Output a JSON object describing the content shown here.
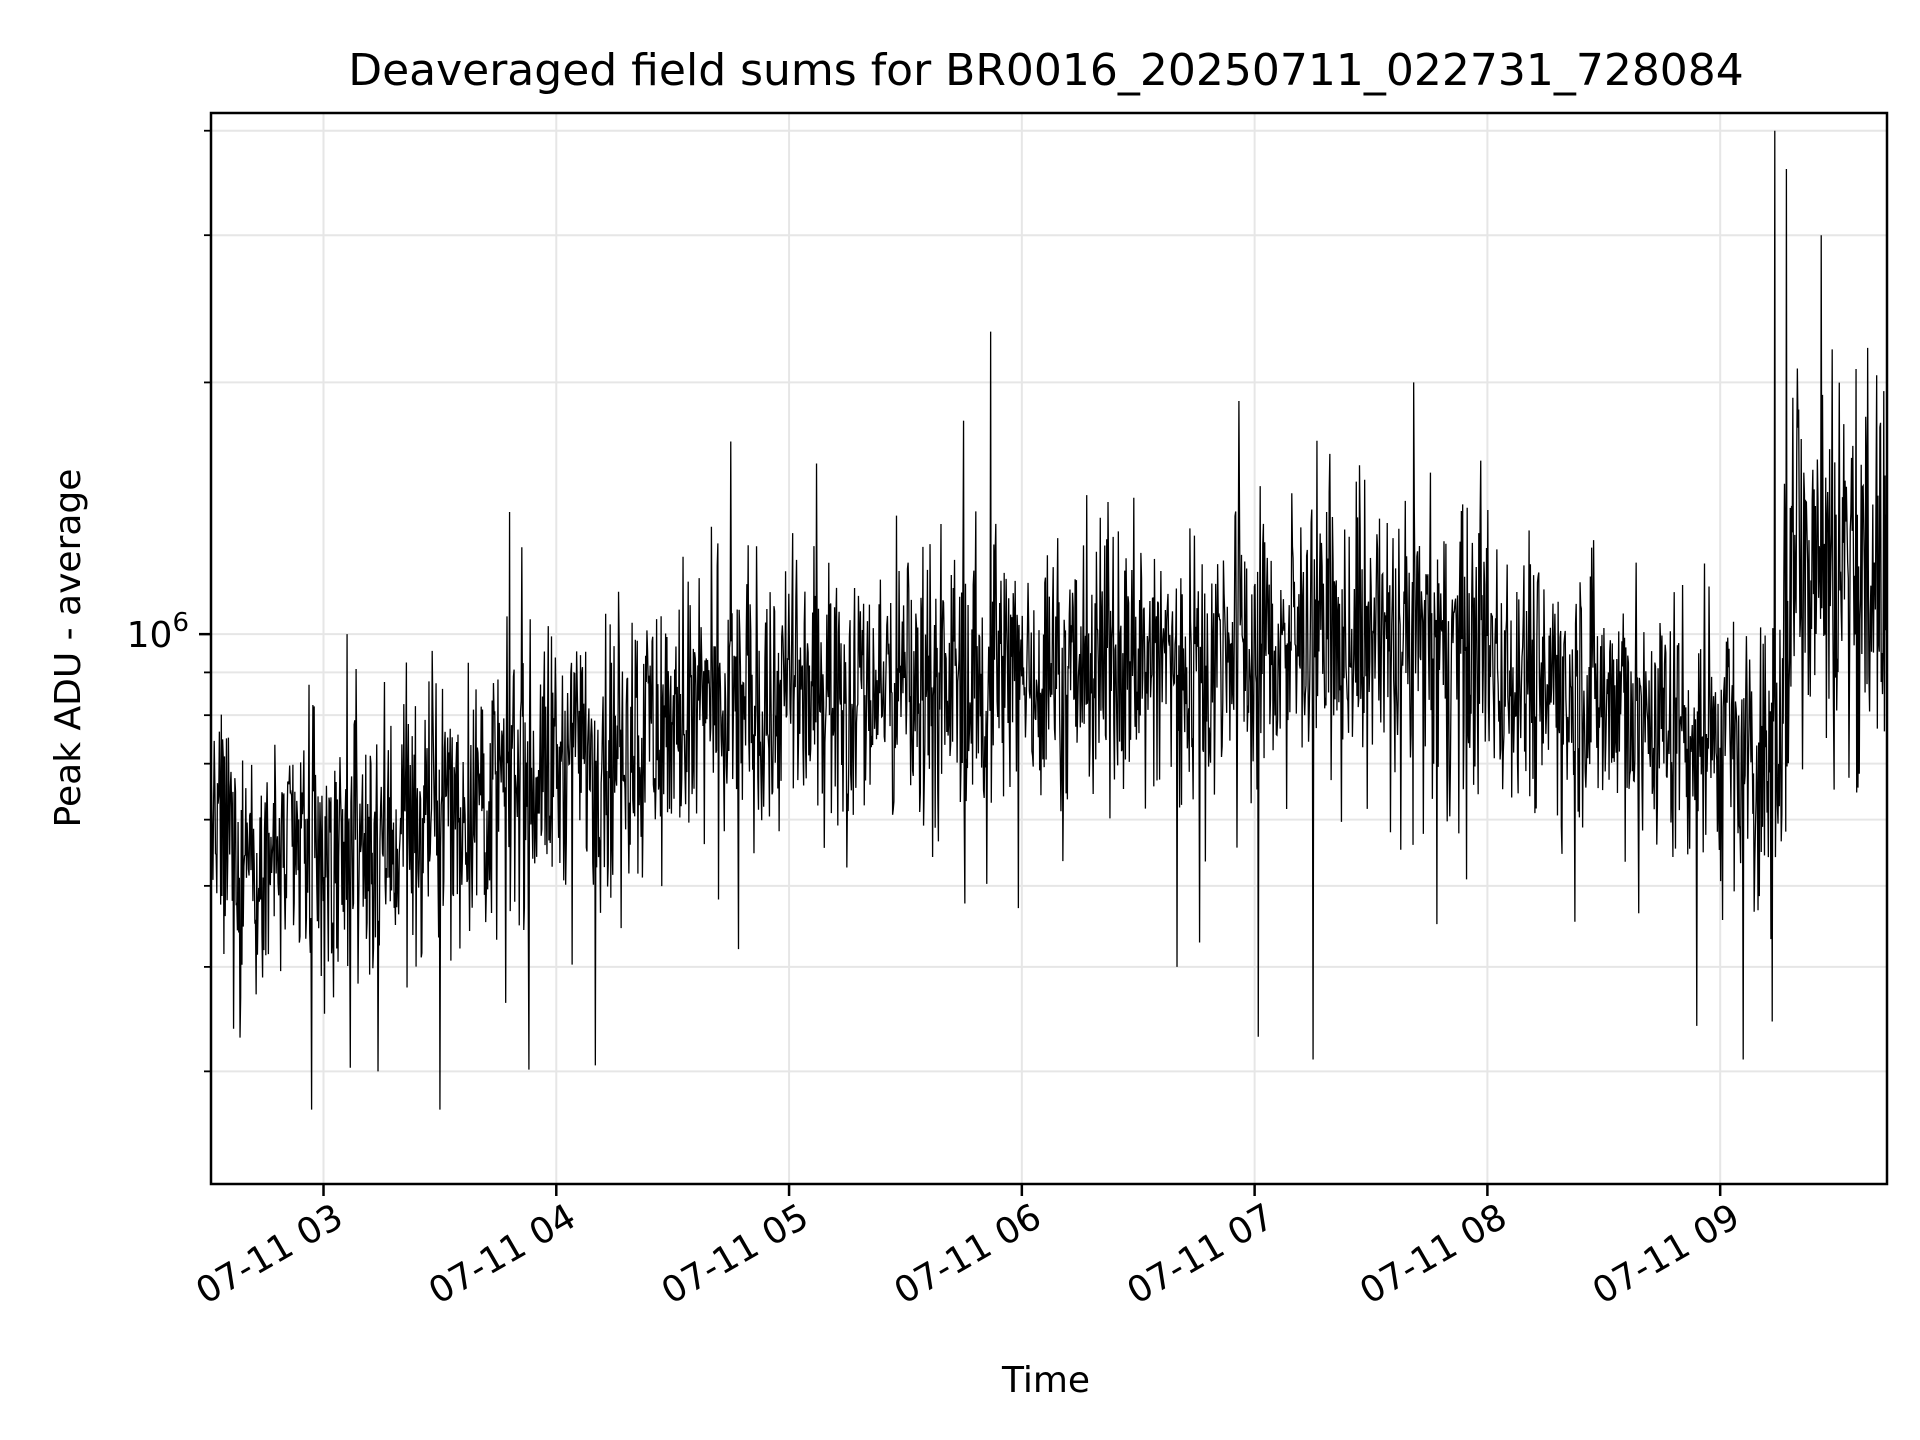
{
  "chart_data": {
    "type": "line",
    "title": "Deaveraged field sums for BR0016_20250711_022731_728084",
    "xlabel": "Time",
    "ylabel": "Peak ADU - average",
    "yscale": "log",
    "xlim": [
      "2025-07-11 02:31",
      "2025-07-11 09:43"
    ],
    "ylim": [
      220000,
      4200000
    ],
    "x_ticks": [
      "07-11 03",
      "07-11 04",
      "07-11 05",
      "07-11 06",
      "07-11 07",
      "07-11 08",
      "07-11 09"
    ],
    "y_tick_label": "10^6",
    "grid": true,
    "legend": "none",
    "line_color": "#000000",
    "trend": {
      "x": [
        "2025-07-11 02:31",
        "2025-07-11 03:00",
        "2025-07-11 03:30",
        "2025-07-11 04:00",
        "2025-07-11 04:30",
        "2025-07-11 05:00",
        "2025-07-11 05:30",
        "2025-07-11 06:00",
        "2025-07-11 06:30",
        "2025-07-11 07:00",
        "2025-07-11 07:30",
        "2025-07-11 08:00",
        "2025-07-11 08:30",
        "2025-07-11 09:00",
        "2025-07-11 09:13",
        "2025-07-11 09:20",
        "2025-07-11 09:43"
      ],
      "y": [
        560000,
        540000,
        610000,
        700000,
        790000,
        850000,
        880000,
        900000,
        930000,
        960000,
        1000000,
        950000,
        850000,
        720000,
        700000,
        1300000,
        1150000
      ]
    },
    "spikes": [
      {
        "x": "2025-07-11 02:57",
        "y": 270000
      },
      {
        "x": "2025-07-11 03:06",
        "y": 1000000
      },
      {
        "x": "2025-07-11 03:14",
        "y": 300000
      },
      {
        "x": "2025-07-11 03:30",
        "y": 270000
      },
      {
        "x": "2025-07-11 03:48",
        "y": 1400000
      },
      {
        "x": "2025-07-11 04:10",
        "y": 305000
      },
      {
        "x": "2025-07-11 04:45",
        "y": 1700000
      },
      {
        "x": "2025-07-11 04:47",
        "y": 420000
      },
      {
        "x": "2025-07-11 05:07",
        "y": 1600000
      },
      {
        "x": "2025-07-11 05:45",
        "y": 1800000
      },
      {
        "x": "2025-07-11 05:52",
        "y": 2300000
      },
      {
        "x": "2025-07-11 06:40",
        "y": 400000
      },
      {
        "x": "2025-07-11 06:56",
        "y": 1900000
      },
      {
        "x": "2025-07-11 07:01",
        "y": 330000
      },
      {
        "x": "2025-07-11 07:15",
        "y": 310000
      },
      {
        "x": "2025-07-11 07:41",
        "y": 2000000
      },
      {
        "x": "2025-07-11 07:47",
        "y": 450000
      },
      {
        "x": "2025-07-11 08:54",
        "y": 340000
      },
      {
        "x": "2025-07-11 09:06",
        "y": 310000
      },
      {
        "x": "2025-07-11 09:14",
        "y": 4000000
      },
      {
        "x": "2025-07-11 09:17",
        "y": 3600000
      },
      {
        "x": "2025-07-11 09:26",
        "y": 3000000
      },
      {
        "x": "2025-07-11 09:38",
        "y": 2200000
      }
    ]
  }
}
